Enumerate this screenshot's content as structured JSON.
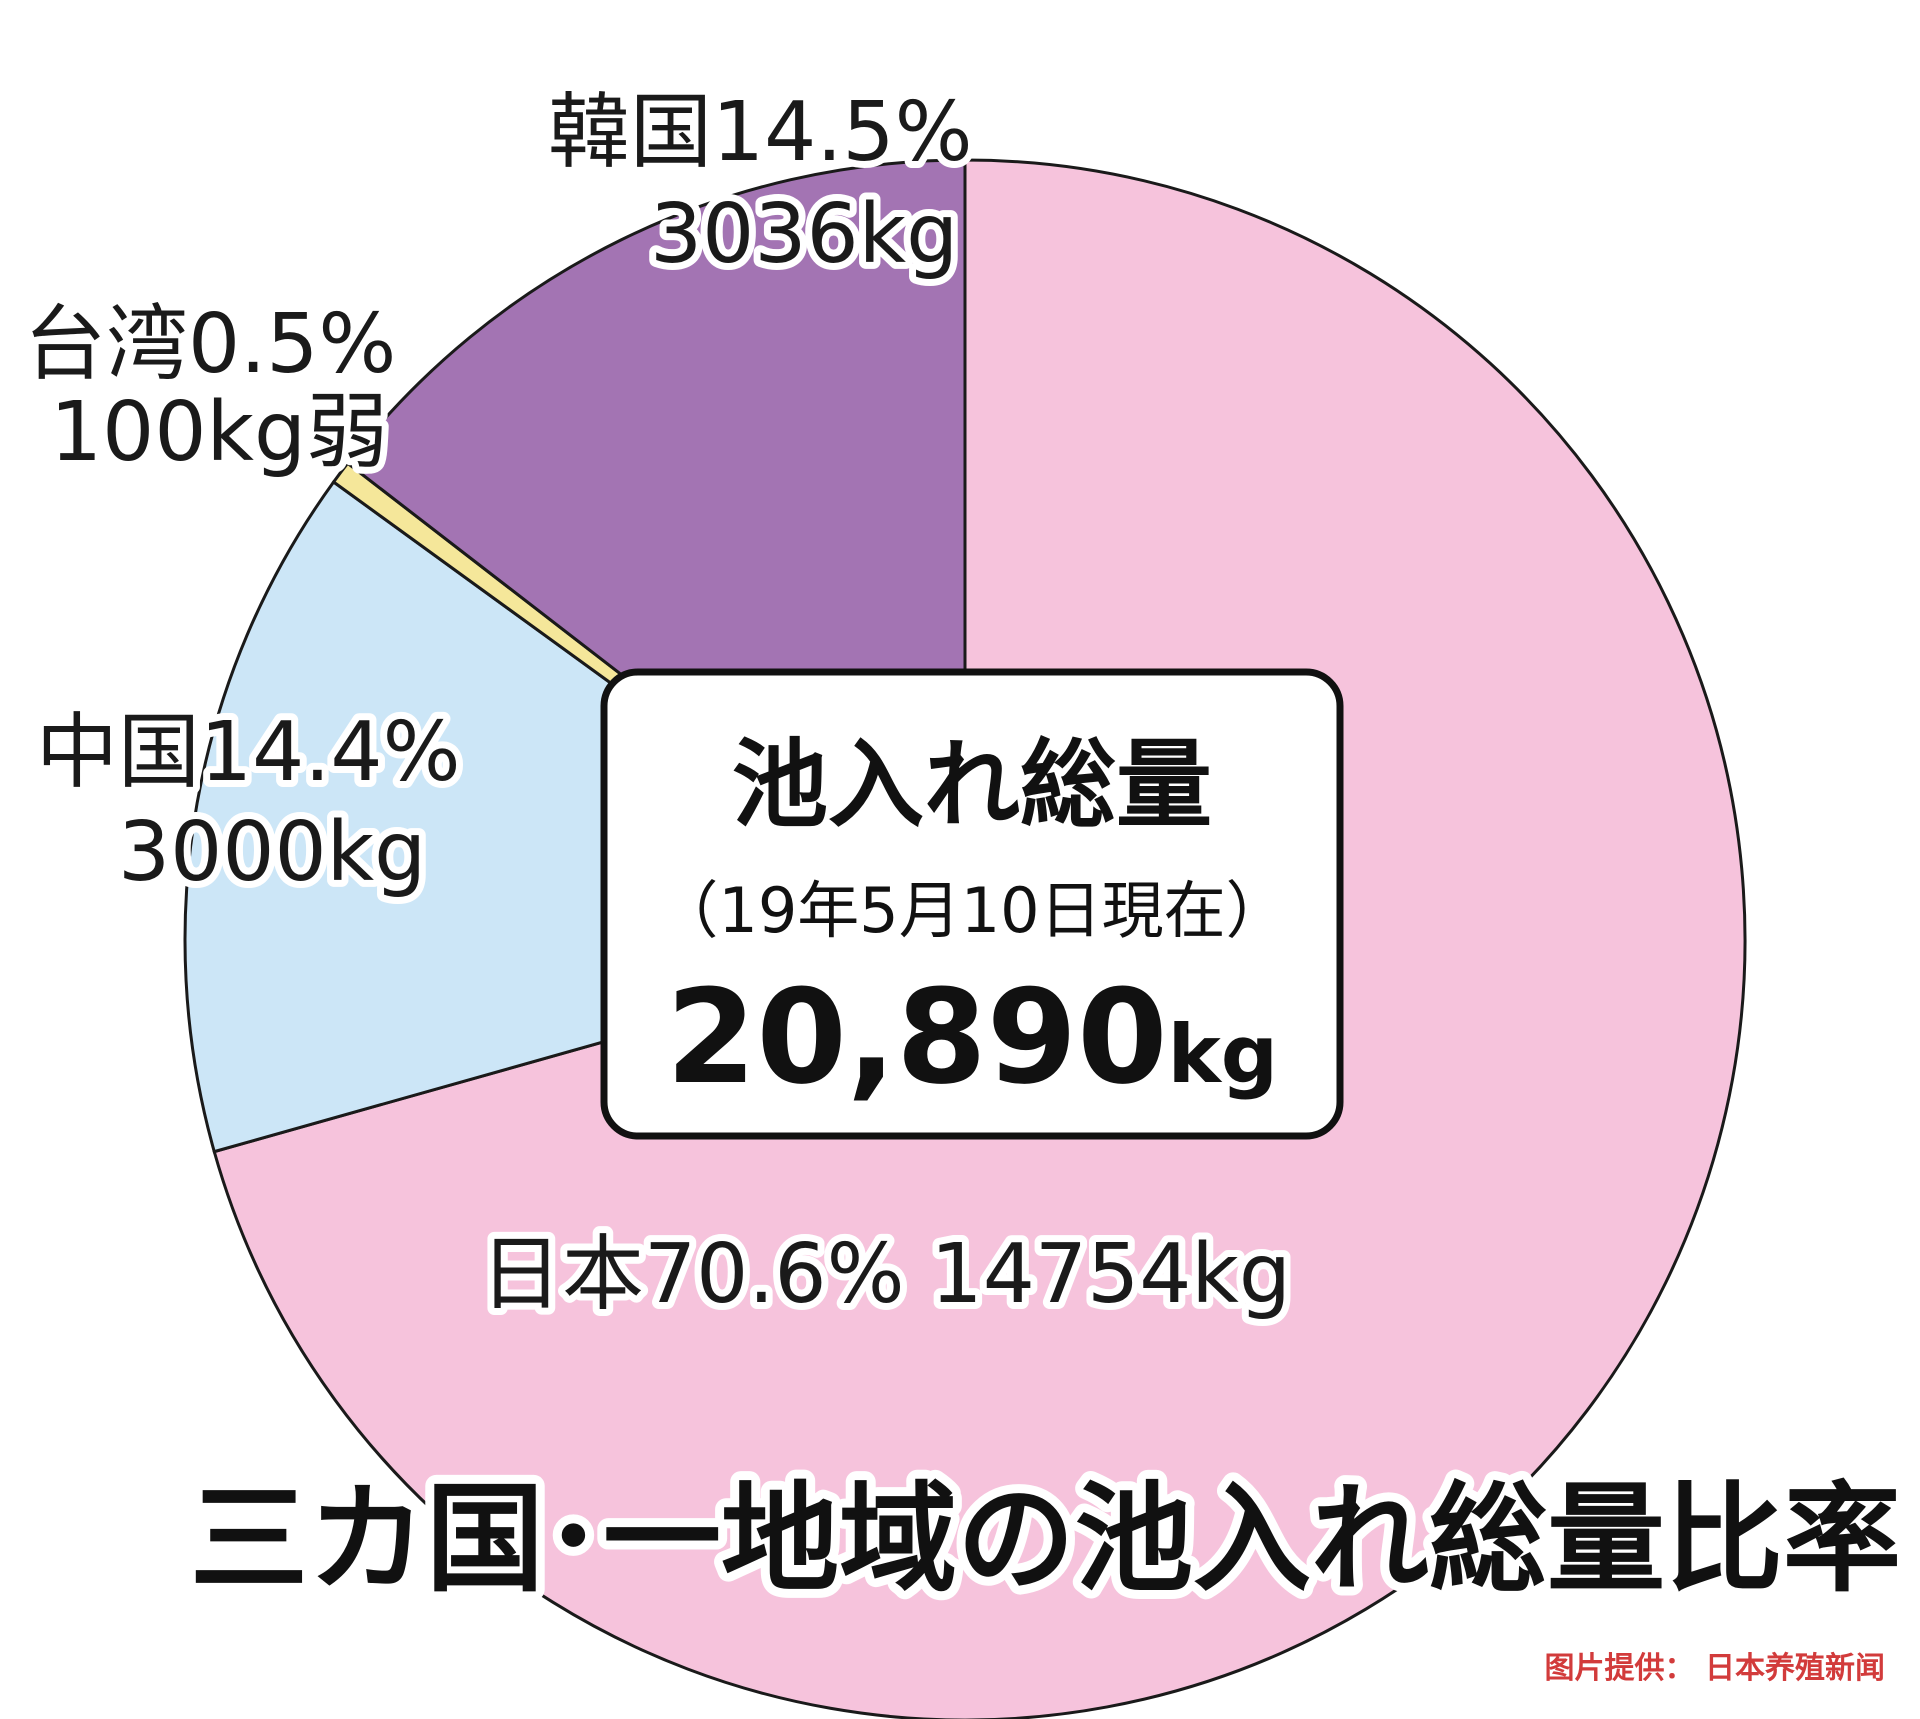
{
  "chart_data": {
    "type": "pie",
    "title": "三カ国･一地域の池入れ総量比率",
    "center_box": {
      "heading": "池入れ総量",
      "date_note": "（19年5月10日現在）",
      "total_number": "20,890",
      "total_unit": "kg",
      "total_value": 20890
    },
    "slices": [
      {
        "name": "日本",
        "percent": 70.6,
        "value": 14754,
        "label_line1": "日本70.6% 14754kg",
        "label_line2": "",
        "color": "#f6c3dc"
      },
      {
        "name": "中国",
        "percent": 14.4,
        "value": 3000,
        "label_line1": "中国14.4%",
        "label_line2": "3000kg",
        "color": "#cce6f7"
      },
      {
        "name": "台湾",
        "percent": 0.5,
        "value": 100,
        "label_line1": "台湾0.5%",
        "label_line2": "100kg弱",
        "color": "#f5e79a"
      },
      {
        "name": "韓国",
        "percent": 14.5,
        "value": 3036,
        "label_line1": "韓国14.5%",
        "label_line2": "3036kg",
        "color": "#a374b3"
      }
    ]
  },
  "credit": "图片提供： 日本养殖新闻"
}
